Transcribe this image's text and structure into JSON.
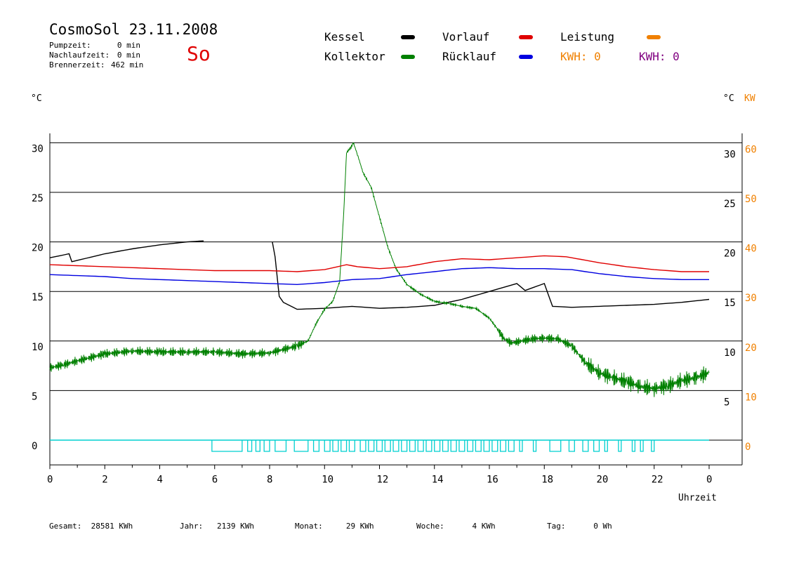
{
  "header": {
    "title": "CosmoSol 23.11.2008",
    "day": "So",
    "stats": [
      {
        "label": "Pumpzeit:",
        "value": "0 min"
      },
      {
        "label": "Nachlaufzeit:",
        "value": "0 min"
      },
      {
        "label": "Brennerzeit:",
        "value": "462 min"
      }
    ]
  },
  "legend": {
    "kessel": "Kessel",
    "kollektor": "Kollektor",
    "vorlauf": "Vorlauf",
    "ruecklauf": "Rücklauf",
    "leistung": "Leistung",
    "kwh1": "KWH: 0",
    "kwh2": "KWH: 0"
  },
  "axes": {
    "left_unit": "°C",
    "right_unit_c": "°C",
    "right_unit_kw": "KW",
    "x_label": "Uhrzeit"
  },
  "colors": {
    "kessel": "#000000",
    "kollektor": "#008000",
    "vorlauf": "#e00000",
    "ruecklauf": "#0000e0",
    "leistung": "#f08000",
    "kwh2": "#800080",
    "pump": "#00d0d0"
  },
  "footer": {
    "gesamt": "Gesamt:  28581 KWh",
    "jahr": "Jahr:   2139 KWh",
    "monat": "Monat:     29 KWh",
    "woche": "Woche:      4 KWh",
    "tag": "Tag:      0 Wh"
  },
  "chart_data": {
    "type": "line",
    "xlabel": "Uhrzeit",
    "ylabel": "°C",
    "xlim": [
      0,
      24
    ],
    "ylim": [
      -2.5,
      32.5
    ],
    "y_ticks_left": [
      0,
      5,
      10,
      15,
      20,
      25,
      30
    ],
    "y_ticks_right_c": [
      5,
      10,
      15,
      20,
      25,
      30
    ],
    "y_ticks_right_kw": [
      0,
      10,
      20,
      30,
      40,
      50,
      60
    ],
    "x_tick_labels": [
      "0",
      "2",
      "4",
      "6",
      "8",
      "10",
      "12",
      "14",
      "16",
      "18",
      "20",
      "22",
      "0"
    ],
    "grid": true,
    "series": [
      {
        "name": "Kessel",
        "color": "#000000",
        "x": [
          0,
          0.7,
          0.8,
          2,
          3,
          4,
          5,
          5.6
        ],
        "y": [
          18.4,
          18.8,
          18.0,
          18.8,
          19.3,
          19.7,
          20.0,
          20.1
        ]
      },
      {
        "name": "Kessel",
        "color": "#000000",
        "x": [
          8.1,
          8.2,
          8.35,
          8.5,
          9,
          10,
          11,
          12,
          13,
          14,
          15,
          16,
          17,
          17.3,
          18,
          18.3,
          19,
          20,
          21,
          22,
          23,
          24
        ],
        "y": [
          20.0,
          18.5,
          14.5,
          13.9,
          13.2,
          13.3,
          13.5,
          13.3,
          13.4,
          13.6,
          14.2,
          15.0,
          15.8,
          15.1,
          15.8,
          13.5,
          13.4,
          13.5,
          13.6,
          13.7,
          13.9,
          14.2
        ]
      },
      {
        "name": "Kollektor",
        "color": "#008000",
        "x": [
          0,
          0.5,
          1,
          2,
          3,
          4,
          5,
          6,
          7,
          8,
          9,
          9.4,
          9.7,
          10,
          10.3,
          10.55,
          10.7,
          10.8,
          10.95,
          11.05,
          11.2,
          11.4,
          11.7,
          12,
          12.3,
          12.6,
          13,
          13.5,
          14,
          14.5,
          15,
          15.5,
          16,
          16.3,
          16.5,
          16.8,
          17,
          17.5,
          18,
          18.5,
          19,
          19.5,
          20,
          20.5,
          21,
          21.5,
          22,
          22.5,
          23,
          23.5,
          24
        ],
        "y": [
          7.3,
          7.6,
          8.0,
          8.7,
          9.0,
          8.9,
          8.9,
          8.9,
          8.7,
          8.8,
          9.5,
          10.0,
          11.8,
          13.2,
          14.0,
          16.0,
          23.0,
          29.0,
          29.5,
          30.0,
          28.8,
          27.0,
          25.5,
          22.5,
          19.5,
          17.3,
          15.7,
          14.7,
          14.0,
          13.8,
          13.5,
          13.3,
          12.3,
          11.2,
          10.3,
          9.8,
          9.9,
          10.2,
          10.3,
          10.2,
          9.5,
          7.8,
          6.8,
          6.3,
          5.9,
          5.4,
          5.2,
          5.5,
          6.0,
          6.3,
          6.8
        ]
      },
      {
        "name": "Vorlauf",
        "color": "#e00000",
        "x": [
          0,
          1,
          2,
          3,
          4,
          5,
          6,
          7,
          8,
          9,
          10,
          10.8,
          11.2,
          12,
          13,
          14,
          15,
          16,
          17,
          18,
          18.8,
          19,
          20,
          21,
          22,
          23,
          24
        ],
        "y": [
          17.7,
          17.6,
          17.5,
          17.4,
          17.3,
          17.2,
          17.1,
          17.1,
          17.1,
          17.0,
          17.2,
          17.7,
          17.5,
          17.3,
          17.5,
          18.0,
          18.3,
          18.2,
          18.4,
          18.6,
          18.5,
          18.4,
          17.9,
          17.5,
          17.2,
          17.0,
          17.0
        ]
      },
      {
        "name": "Rücklauf",
        "color": "#0000e0",
        "x": [
          0,
          1,
          2,
          3,
          4,
          5,
          6,
          7,
          8,
          9,
          10,
          11,
          12,
          13,
          14,
          15,
          16,
          17,
          18,
          19,
          20,
          21,
          22,
          23,
          24
        ],
        "y": [
          16.7,
          16.6,
          16.5,
          16.3,
          16.2,
          16.1,
          16.0,
          15.9,
          15.8,
          15.7,
          15.9,
          16.2,
          16.3,
          16.7,
          17.0,
          17.3,
          17.4,
          17.3,
          17.3,
          17.2,
          16.8,
          16.5,
          16.3,
          16.2,
          16.2
        ]
      }
    ],
    "pump_pulses": [
      [
        5.9,
        7.0
      ],
      [
        7.2,
        7.35
      ],
      [
        7.5,
        7.65
      ],
      [
        7.8,
        8.0
      ],
      [
        8.2,
        8.6
      ],
      [
        8.9,
        9.4
      ],
      [
        9.6,
        9.8
      ],
      [
        10.0,
        10.2
      ],
      [
        10.3,
        10.5
      ],
      [
        10.6,
        10.8
      ],
      [
        10.9,
        11.1
      ],
      [
        11.3,
        11.5
      ],
      [
        11.6,
        11.8
      ],
      [
        11.9,
        12.1
      ],
      [
        12.2,
        12.4
      ],
      [
        12.5,
        12.7
      ],
      [
        12.8,
        13.0
      ],
      [
        13.1,
        13.3
      ],
      [
        13.4,
        13.6
      ],
      [
        13.7,
        13.9
      ],
      [
        14.0,
        14.2
      ],
      [
        14.3,
        14.5
      ],
      [
        14.6,
        14.8
      ],
      [
        14.9,
        15.1
      ],
      [
        15.2,
        15.4
      ],
      [
        15.5,
        15.7
      ],
      [
        15.8,
        16.0
      ],
      [
        16.1,
        16.3
      ],
      [
        16.4,
        16.6
      ],
      [
        16.7,
        16.9
      ],
      [
        17.1,
        17.2
      ],
      [
        17.6,
        17.7
      ],
      [
        18.2,
        18.6
      ],
      [
        18.9,
        19.1
      ],
      [
        19.4,
        19.6
      ],
      [
        19.8,
        20.0
      ],
      [
        20.2,
        20.3
      ],
      [
        20.7,
        20.8
      ],
      [
        21.2,
        21.3
      ],
      [
        21.5,
        21.6
      ],
      [
        21.9,
        22.0
      ]
    ]
  }
}
